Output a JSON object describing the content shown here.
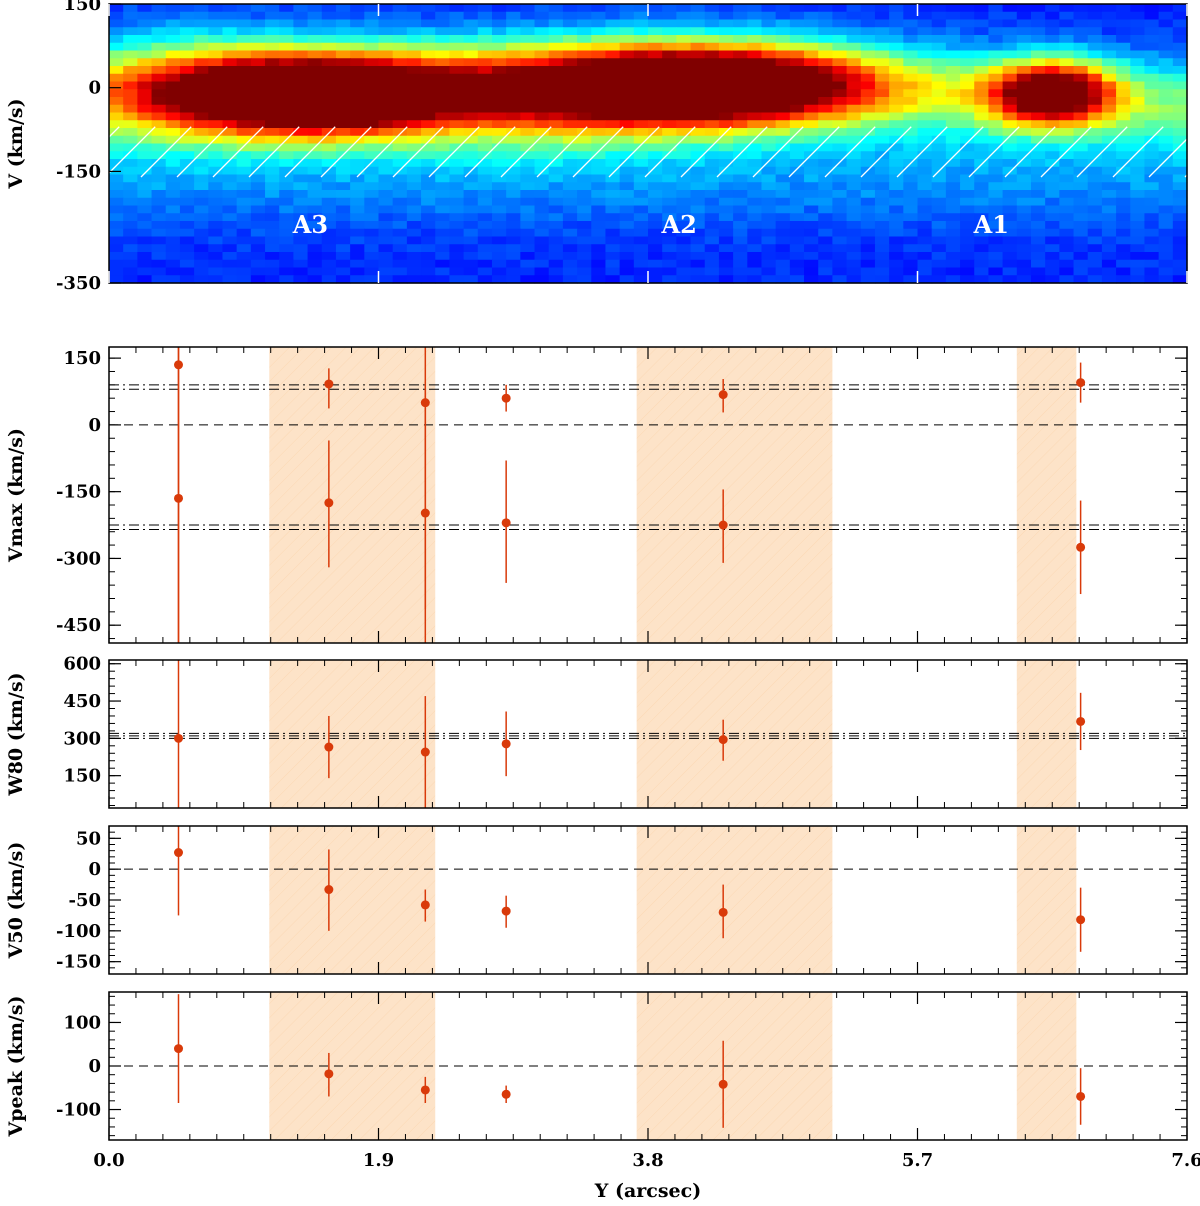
{
  "chart_data": [
    {
      "type": "heatmap",
      "ylabel": "V (km/s)",
      "xlim": [
        0.0,
        7.6
      ],
      "ylim": [
        -350,
        150
      ],
      "yticks": [
        150,
        0,
        -150,
        -350
      ],
      "colormap": "jet",
      "annotations": [
        "A3",
        "A2",
        "A1"
      ],
      "annotation_x": [
        1.42,
        4.02,
        6.22
      ],
      "hatch_band_v": [
        -160,
        -70
      ],
      "blobs": [
        {
          "x": 1.45,
          "v": -15,
          "sx": 0.65,
          "sv": 50,
          "amp": 1.0
        },
        {
          "x": 4.25,
          "v": 5,
          "sx": 0.8,
          "sv": 50,
          "amp": 1.0
        },
        {
          "x": 6.65,
          "v": -10,
          "sx": 0.3,
          "sv": 40,
          "amp": 0.85
        },
        {
          "x": 3.0,
          "v": -20,
          "sx": 0.9,
          "sv": 60,
          "amp": 0.45
        },
        {
          "x": 0.5,
          "v": 0,
          "sx": 0.6,
          "sv": 70,
          "amp": 0.3
        }
      ]
    },
    {
      "type": "scatter",
      "ylabel": "Vmax (km/s)",
      "ylim": [
        -490,
        175
      ],
      "yticks": [
        150,
        0,
        -150,
        -300,
        -450
      ],
      "reference_lines": [
        {
          "y": 0,
          "style": "dashed"
        },
        {
          "y": 90,
          "style": "dashdot"
        },
        {
          "y": 80,
          "style": "dashdot"
        },
        {
          "y": -225,
          "style": "dashdot"
        },
        {
          "y": -235,
          "style": "dashdot"
        }
      ],
      "series": [
        {
          "x": [
            0.49,
            1.55,
            2.23,
            2.8,
            4.33,
            6.85
          ],
          "y": [
            135,
            92,
            50,
            60,
            68,
            95
          ],
          "err_low": [
            null,
            55,
            null,
            30,
            40,
            45
          ],
          "err_high": [
            null,
            35,
            30,
            30,
            35,
            45
          ]
        },
        {
          "x": [
            0.49,
            1.55,
            2.23,
            2.8,
            4.33,
            6.85
          ],
          "y": [
            -165,
            -175,
            -198,
            -220,
            -225,
            -275
          ],
          "err_low": [
            325,
            145,
            215,
            135,
            85,
            105
          ],
          "err_high": [
            null,
            140,
            null,
            140,
            80,
            105
          ]
        }
      ]
    },
    {
      "type": "scatter",
      "ylabel": "W80 (km/s)",
      "ylim": [
        20,
        615
      ],
      "yticks": [
        600,
        450,
        300,
        150
      ],
      "reference_lines": [
        {
          "y": 320,
          "style": "dashdot"
        },
        {
          "y": 310,
          "style": "dashdot"
        },
        {
          "y": 300,
          "style": "dashdot"
        }
      ],
      "series": [
        {
          "x": [
            0.49,
            1.55,
            2.23,
            2.8,
            4.33,
            6.85
          ],
          "y": [
            300,
            265,
            245,
            278,
            295,
            368
          ],
          "err_low": [
            280,
            125,
            225,
            130,
            85,
            115
          ],
          "err_high": [
            315,
            125,
            225,
            130,
            80,
            115
          ]
        }
      ]
    },
    {
      "type": "scatter",
      "ylabel": "V50 (km/s)",
      "ylim": [
        -170,
        70
      ],
      "yticks": [
        50,
        0,
        -50,
        -100,
        -150
      ],
      "reference_lines": [
        {
          "y": 0,
          "style": "dashed"
        }
      ],
      "series": [
        {
          "x": [
            0.49,
            1.55,
            2.23,
            2.8,
            4.33,
            6.85
          ],
          "y": [
            27,
            -33,
            -58,
            -68,
            -70,
            -82
          ],
          "err_low": [
            102,
            67,
            27,
            27,
            42,
            52
          ],
          "err_high": [
            53,
            65,
            25,
            25,
            45,
            52
          ]
        }
      ]
    },
    {
      "type": "scatter",
      "ylabel": "Vpeak (km/s)",
      "xlabel": "Y (arcsec)",
      "xlim": [
        0.0,
        7.6
      ],
      "xticks": [
        "0.0",
        "1.9",
        "3.8",
        "5.7",
        "7.6"
      ],
      "ylim": [
        -170,
        170
      ],
      "yticks": [
        100,
        0,
        -100
      ],
      "reference_lines": [
        {
          "y": 0,
          "style": "dashed"
        }
      ],
      "series": [
        {
          "x": [
            0.49,
            1.55,
            2.23,
            2.8,
            4.33,
            6.85
          ],
          "y": [
            40,
            -18,
            -55,
            -65,
            -42,
            -70
          ],
          "err_low": [
            125,
            52,
            30,
            20,
            100,
            65
          ],
          "err_high": [
            125,
            48,
            30,
            20,
            100,
            65
          ]
        }
      ]
    }
  ],
  "shaded_regions_x": [
    [
      1.13,
      2.3
    ],
    [
      3.72,
      5.1
    ],
    [
      6.4,
      6.82
    ]
  ],
  "colors": {
    "marker": "#d93a0a",
    "shade": "#fde3c8",
    "hatch_white": "#ffffff"
  }
}
